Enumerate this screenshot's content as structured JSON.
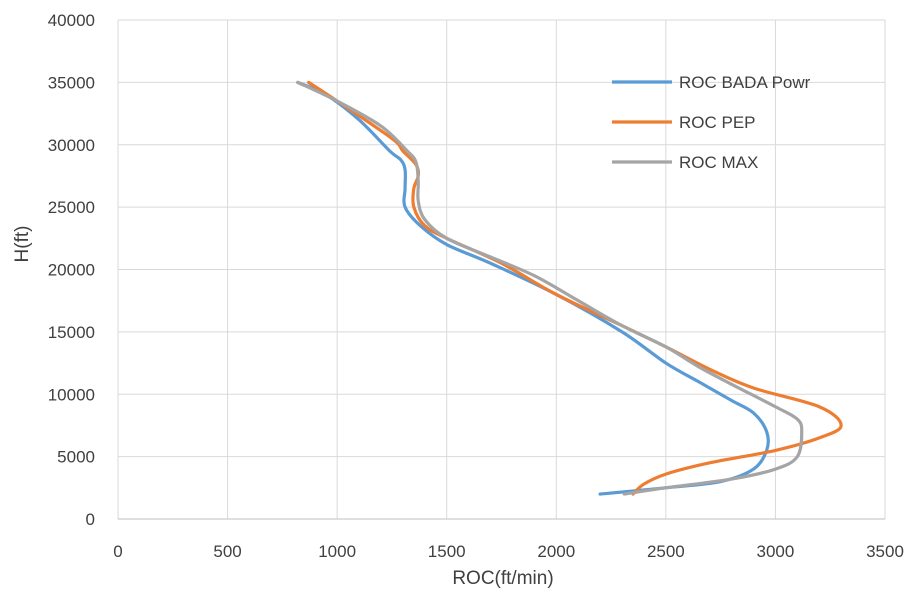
{
  "chart_data": {
    "type": "line",
    "title": "",
    "xlabel": "ROC(ft/min)",
    "ylabel": "H(ft)",
    "xlim": [
      0,
      3500
    ],
    "ylim": [
      0,
      40000
    ],
    "xticks": [
      0,
      500,
      1000,
      1500,
      2000,
      2500,
      3000,
      3500
    ],
    "yticks": [
      0,
      5000,
      10000,
      15000,
      20000,
      25000,
      30000,
      35000,
      40000
    ],
    "x_tick_labels": [
      "0",
      "500",
      "1000",
      "1500",
      "2000",
      "2500",
      "3000",
      "3500"
    ],
    "y_tick_labels": [
      "0",
      "5000",
      "10000",
      "15000",
      "20000",
      "25000",
      "30000",
      "35000",
      "40000"
    ],
    "grid": "both",
    "legend_position": "top-right",
    "series": [
      {
        "name": "ROC BADA Powr",
        "color": "#5b9bd5",
        "points": [
          [
            2200,
            2000
          ],
          [
            2500,
            2500
          ],
          [
            2750,
            3000
          ],
          [
            2900,
            4000
          ],
          [
            2960,
            5500
          ],
          [
            2960,
            7000
          ],
          [
            2900,
            8500
          ],
          [
            2800,
            9500
          ],
          [
            2650,
            11000
          ],
          [
            2500,
            12500
          ],
          [
            2300,
            15000
          ],
          [
            2000,
            18000
          ],
          [
            1700,
            20500
          ],
          [
            1500,
            22000
          ],
          [
            1380,
            23500
          ],
          [
            1310,
            25000
          ],
          [
            1310,
            26500
          ],
          [
            1310,
            28000
          ],
          [
            1290,
            28800
          ],
          [
            1240,
            29500
          ],
          [
            1100,
            32000
          ],
          [
            950,
            34000
          ],
          [
            820,
            35000
          ]
        ]
      },
      {
        "name": "ROC PEP",
        "color": "#ed7d31",
        "points": [
          [
            2350,
            2000
          ],
          [
            2400,
            2800
          ],
          [
            2500,
            3600
          ],
          [
            2700,
            4500
          ],
          [
            3000,
            5500
          ],
          [
            3200,
            6500
          ],
          [
            3300,
            7500
          ],
          [
            3200,
            9000
          ],
          [
            2900,
            10500
          ],
          [
            2700,
            12000
          ],
          [
            2500,
            13800
          ],
          [
            2300,
            15500
          ],
          [
            2000,
            18000
          ],
          [
            1750,
            20500
          ],
          [
            1500,
            22500
          ],
          [
            1400,
            23500
          ],
          [
            1350,
            25000
          ],
          [
            1350,
            26500
          ],
          [
            1370,
            27500
          ],
          [
            1360,
            28400
          ],
          [
            1300,
            29500
          ],
          [
            1250,
            30500
          ],
          [
            1000,
            33500
          ],
          [
            870,
            35000
          ]
        ]
      },
      {
        "name": "ROC MAX",
        "color": "#a5a5a5",
        "points": [
          [
            2310,
            2000
          ],
          [
            2500,
            2500
          ],
          [
            2800,
            3200
          ],
          [
            3000,
            4000
          ],
          [
            3100,
            5000
          ],
          [
            3120,
            7000
          ],
          [
            3100,
            8000
          ],
          [
            3000,
            9000
          ],
          [
            2800,
            10800
          ],
          [
            2650,
            12200
          ],
          [
            2500,
            13800
          ],
          [
            2300,
            15500
          ],
          [
            2100,
            17500
          ],
          [
            1900,
            19500
          ],
          [
            1700,
            21000
          ],
          [
            1500,
            22500
          ],
          [
            1400,
            24000
          ],
          [
            1370,
            25500
          ],
          [
            1370,
            27000
          ],
          [
            1360,
            28600
          ],
          [
            1320,
            29500
          ],
          [
            1200,
            31500
          ],
          [
            1000,
            33500
          ],
          [
            820,
            35000
          ]
        ]
      }
    ]
  }
}
